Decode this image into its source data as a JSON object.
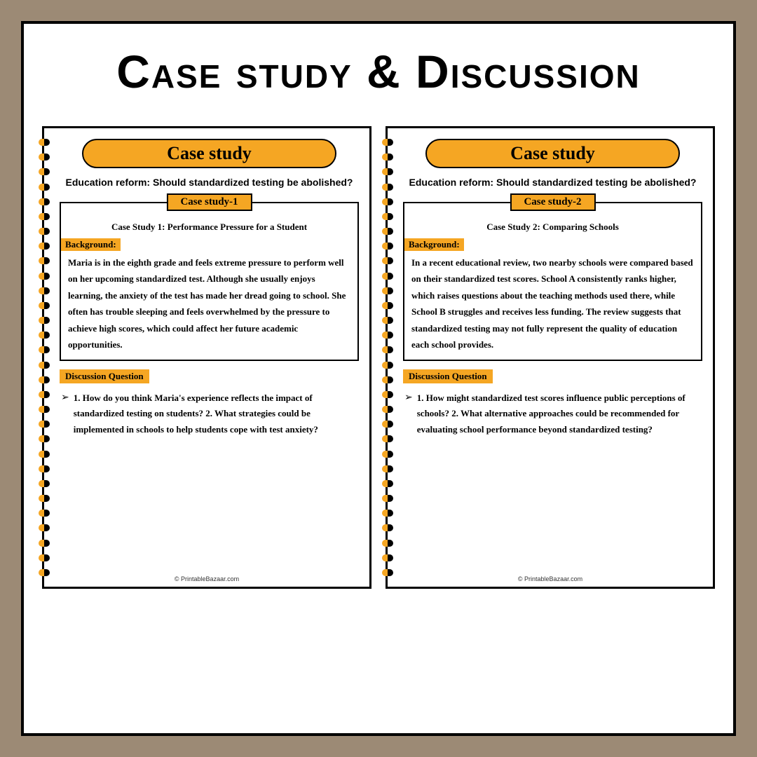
{
  "mainTitle": "Case study & Discussion",
  "colors": {
    "background": "#9c8a75",
    "accent": "#f5a623",
    "white": "#ffffff",
    "black": "#000000"
  },
  "pages": [
    {
      "pillTitle": "Case study",
      "subtitle": "Education reform: Should standardized testing be abolished?",
      "caseBoxLabel": "Case study-1",
      "caseHeading": "Case Study 1: Performance Pressure for a Student",
      "backgroundLabel": "Background:",
      "bodyText": "Maria is in the eighth grade and feels extreme pressure to perform well on her upcoming standardized test. Although she usually enjoys learning, the anxiety of the test has made her dread going to school. She often has trouble sleeping and feels overwhelmed by the pressure to achieve high scores, which could affect her future academic opportunities.",
      "discussionLabel": "Discussion Question",
      "questionText": "1. How do you think Maria's experience reflects the impact of standardized testing on students? 2. What strategies could be implemented in schools to help students cope with test anxiety?",
      "footer": "© PrintableBazaar.com"
    },
    {
      "pillTitle": "Case study",
      "subtitle": "Education reform: Should standardized testing be abolished?",
      "caseBoxLabel": "Case study-2",
      "caseHeading": "Case Study 2: Comparing Schools",
      "backgroundLabel": "Background:",
      "bodyText": "In a recent educational review, two nearby schools were compared based on their standardized test scores. School A consistently ranks higher, which raises questions about the teaching methods used there, while School B struggles and receives less funding. The review suggests that standardized testing may not fully represent the quality of education each school provides.",
      "discussionLabel": "Discussion Question",
      "questionText": "1. How might standardized test scores influence public perceptions of schools? 2. What alternative approaches could be recommended for evaluating school performance beyond standardized testing?",
      "footer": "© PrintableBazaar.com"
    }
  ]
}
